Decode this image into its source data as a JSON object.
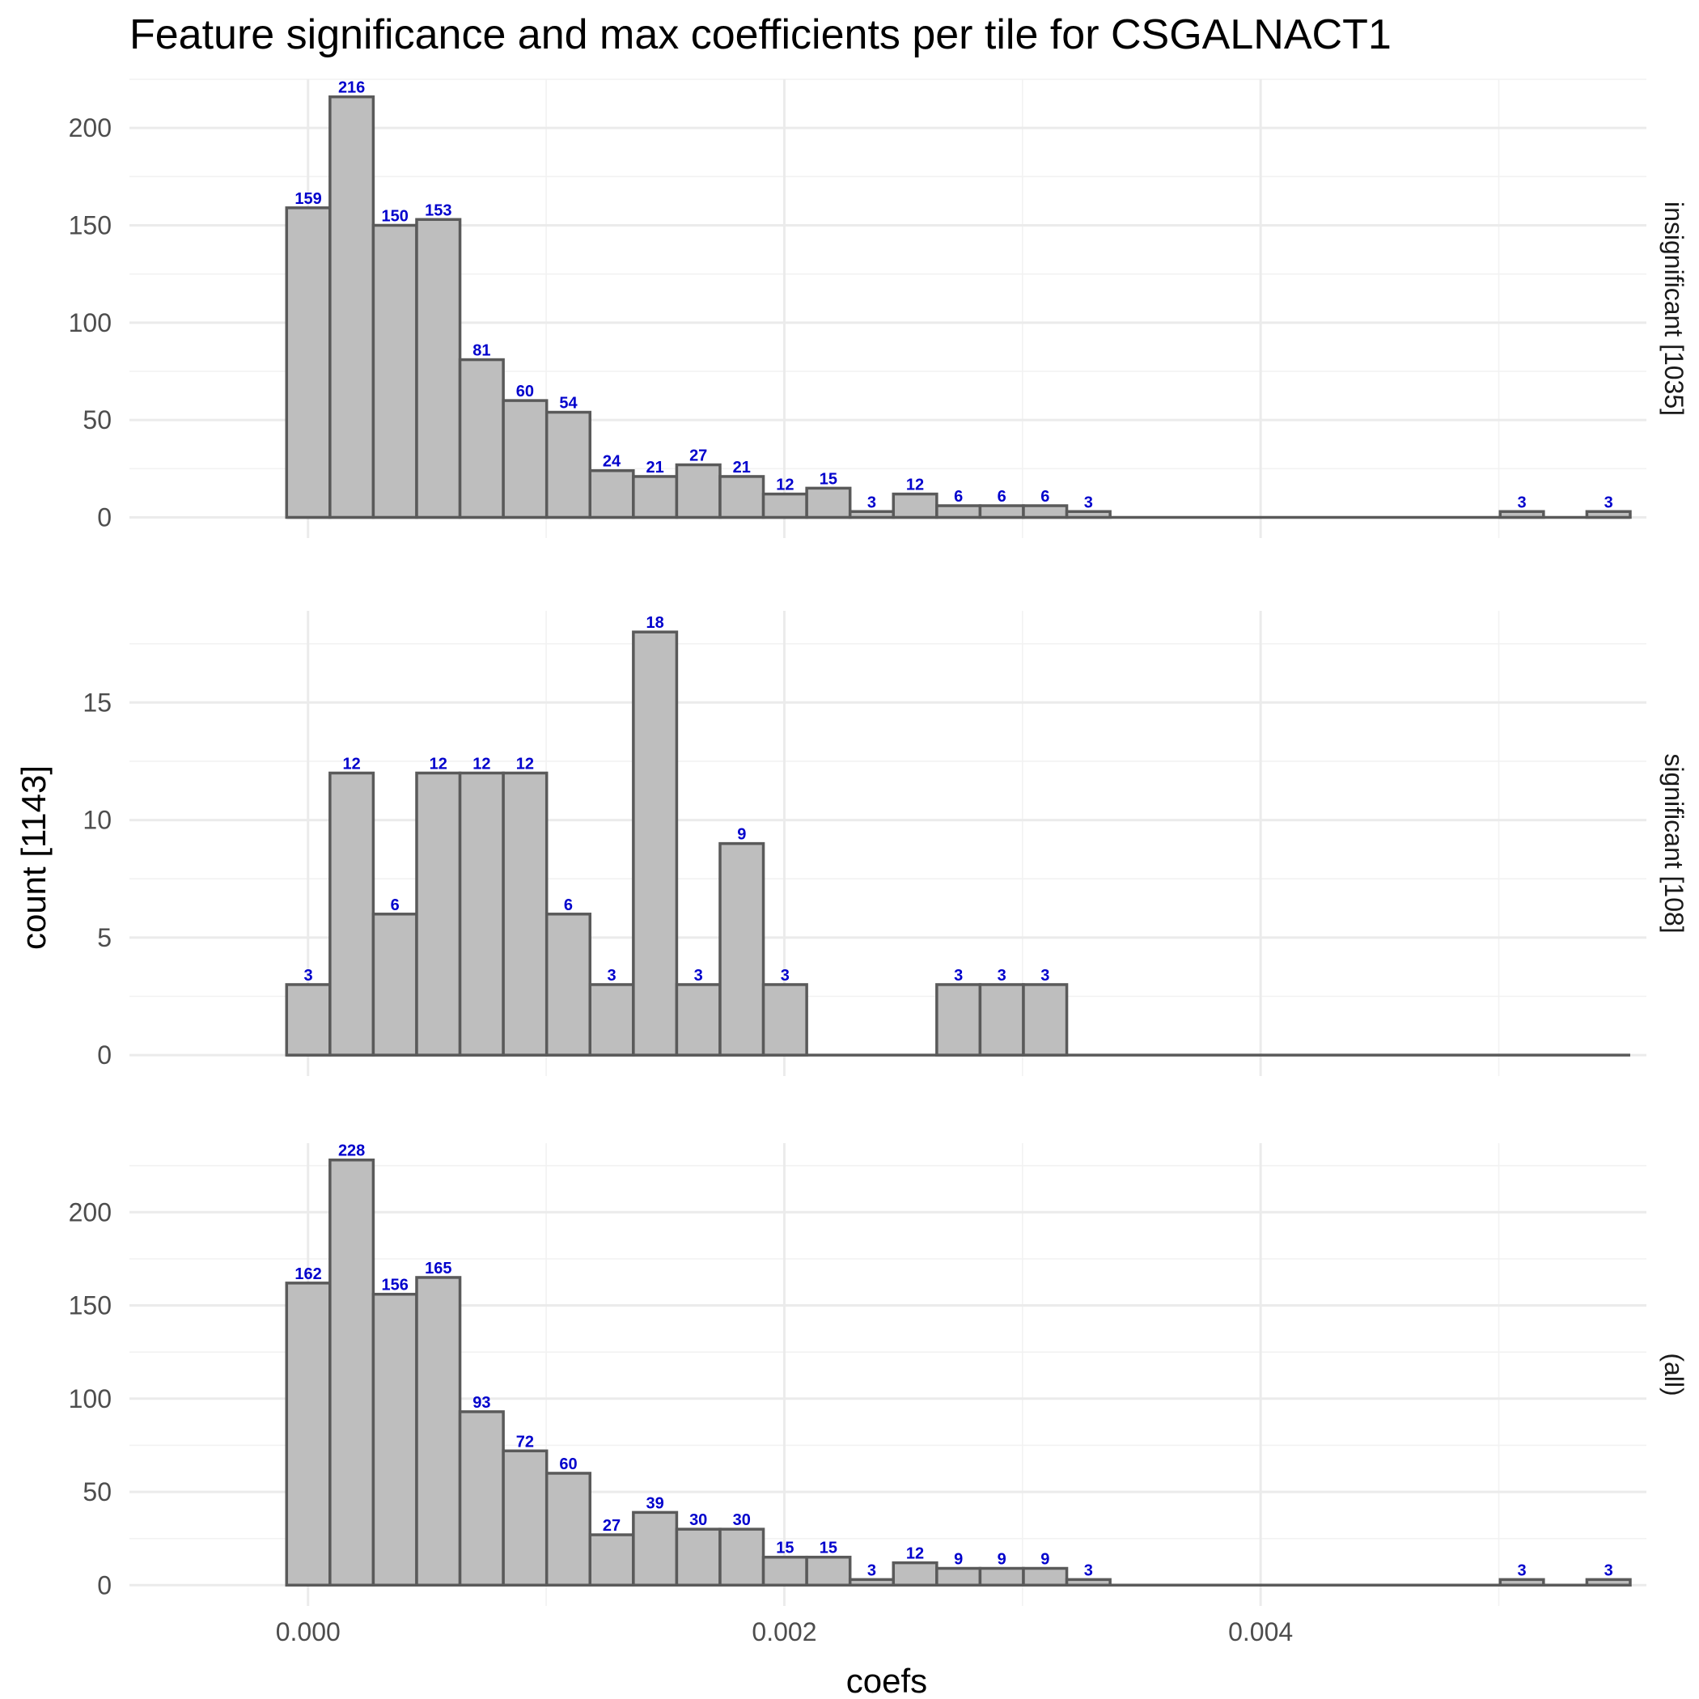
{
  "chart_data": {
    "type": "bar",
    "title": "Feature significance and max coefficients per tile for CSGALNACT1",
    "xlabel": "coefs",
    "ylabel": "count [1143]",
    "x_ticks": [
      "0.000",
      "0.002",
      "0.004"
    ],
    "x_tick_values": [
      0,
      0.002,
      0.004
    ],
    "xlim": [
      -0.00075,
      0.00562
    ],
    "bin_width": 0.000182,
    "bin_start": -9e-05,
    "grid": true,
    "facets": [
      {
        "label": "insignificant [1035]",
        "ylim": [
          0,
          225
        ],
        "y_ticks": [
          0,
          50,
          100,
          150,
          200
        ],
        "values": [
          159,
          216,
          150,
          153,
          81,
          60,
          54,
          24,
          21,
          27,
          21,
          12,
          15,
          3,
          12,
          6,
          6,
          6,
          3,
          0,
          0,
          0,
          0,
          0,
          0,
          0,
          0,
          0,
          3,
          0,
          3
        ]
      },
      {
        "label": "significant [108]",
        "ylim": [
          0,
          18.9
        ],
        "y_ticks": [
          0,
          5,
          10,
          15
        ],
        "values": [
          3,
          12,
          6,
          12,
          12,
          12,
          6,
          3,
          18,
          3,
          9,
          3,
          0,
          0,
          0,
          3,
          3,
          3,
          0,
          0,
          0,
          0,
          0,
          0,
          0,
          0,
          0,
          0,
          0,
          0,
          0
        ]
      },
      {
        "label": "(all)",
        "ylim": [
          0,
          237
        ],
        "y_ticks": [
          0,
          50,
          100,
          150,
          200
        ],
        "values": [
          162,
          228,
          156,
          165,
          93,
          72,
          60,
          27,
          39,
          30,
          30,
          15,
          15,
          3,
          12,
          9,
          9,
          9,
          3,
          0,
          0,
          0,
          0,
          0,
          0,
          0,
          0,
          0,
          3,
          0,
          3
        ]
      }
    ]
  }
}
